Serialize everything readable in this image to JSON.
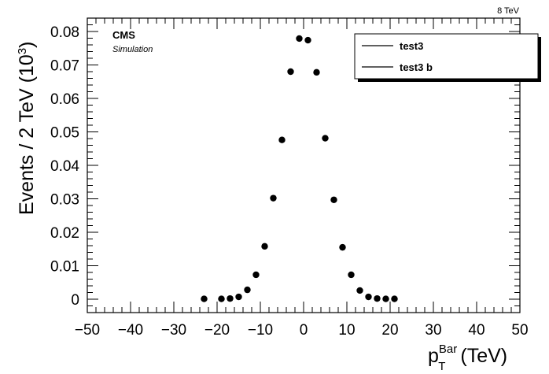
{
  "chart_data": {
    "type": "scatter",
    "energy_label": "8 TeV",
    "experiment": "CMS",
    "experiment_sub": "Simulation",
    "ylabel_main": "Events / 2 TeV (10",
    "ylabel_exp": "3",
    "ylabel_close": ")",
    "xlabel_main": "p",
    "xlabel_sup": "Bar",
    "xlabel_sub": "T",
    "xlabel_unit": " (TeV)",
    "xlim": [
      -50,
      50
    ],
    "ylim": [
      -0.004,
      0.084
    ],
    "grid": false,
    "legend_position": "top-right",
    "x_ticks": [
      "−50",
      "−40",
      "−30",
      "−20",
      "−10",
      "0",
      "10",
      "20",
      "30",
      "40",
      "50"
    ],
    "y_ticks": [
      "0",
      "0.01",
      "0.02",
      "0.03",
      "0.04",
      "0.05",
      "0.06",
      "0.07",
      "0.08"
    ],
    "legend": [
      "test3",
      "test3 b"
    ],
    "series": [
      {
        "name": "test3",
        "x": [
          -23,
          -19,
          -17,
          -15,
          -13,
          -11,
          -9,
          -7,
          -5,
          -3,
          -1,
          1,
          3,
          5,
          7,
          9,
          11,
          13,
          15,
          17,
          19,
          21
        ],
        "y": [
          0.0001,
          0.0001,
          0.0002,
          0.0007,
          0.0028,
          0.0073,
          0.0158,
          0.0302,
          0.0476,
          0.068,
          0.0779,
          0.0774,
          0.0678,
          0.0481,
          0.0297,
          0.0155,
          0.0073,
          0.0026,
          0.0007,
          0.0002,
          0.0001,
          0.0001
        ]
      }
    ]
  }
}
